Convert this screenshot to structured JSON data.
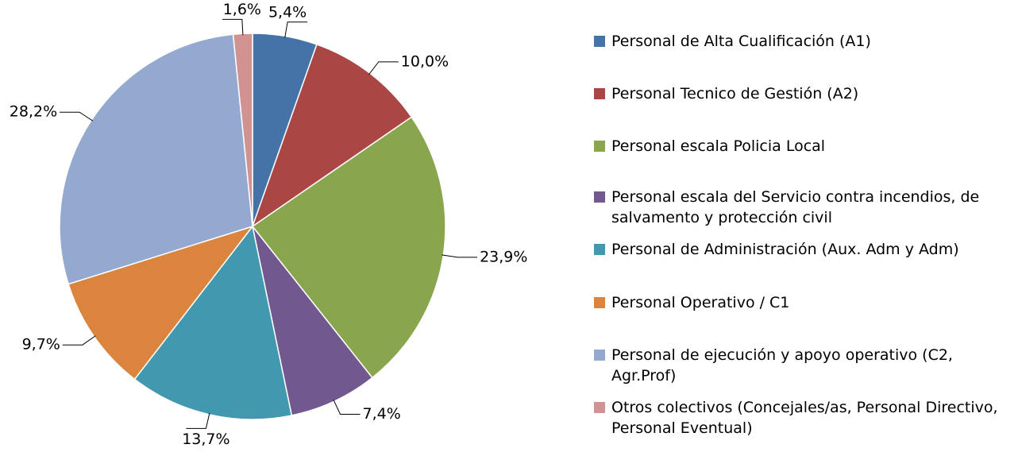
{
  "chart_data": {
    "type": "pie",
    "categories": [
      "Personal de Alta Cualificación (A1)",
      "Personal Tecnico de Gestión (A2)",
      "Personal escala Policia Local",
      "Personal escala del Servicio contra incendios, de salvamento y protección civil",
      "Personal de Administración (Aux. Adm y Adm)",
      "Personal Operativo / C1",
      "Personal de ejecución y apoyo operativo (C2, Agr.Prof)",
      "Otros colectivos (Concejales/as, Personal Directivo, Personal Eventual)"
    ],
    "values": [
      5.4,
      10.0,
      23.9,
      7.4,
      13.7,
      9.7,
      28.2,
      1.6
    ],
    "value_labels": [
      "5,4%",
      "10,0%",
      "23,9%",
      "7,4%",
      "13,7%",
      "9,7%",
      "28,2%",
      "1,6%"
    ],
    "colors": [
      "#4572a7",
      "#aa4643",
      "#89a54e",
      "#71588f",
      "#4198af",
      "#db843d",
      "#93a9cf",
      "#d09392"
    ],
    "legend": "right"
  }
}
